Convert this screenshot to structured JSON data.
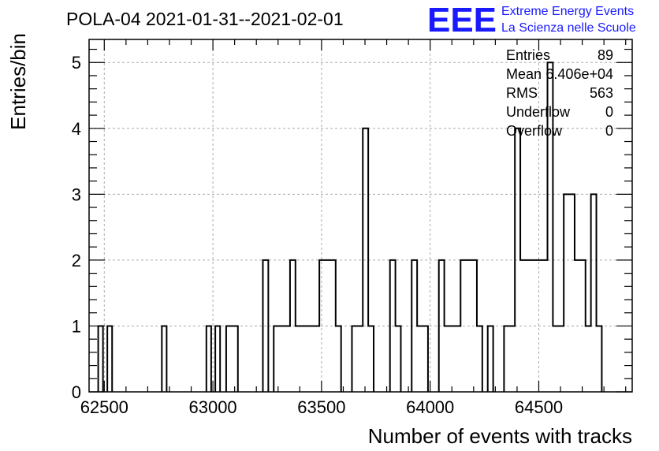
{
  "title": "POLA-04 2021-01-31--2021-02-01",
  "logo": {
    "mark": "EEE",
    "line1": "Extreme Energy Events",
    "line2": "La Scienza nelle Scuole",
    "color": "#1a1aff"
  },
  "stats": [
    {
      "label": "Entries",
      "value": "89"
    },
    {
      "label": "Mean",
      "value": "6.406e+04"
    },
    {
      "label": "RMS",
      "value": "563"
    },
    {
      "label": "Underflow",
      "value": "0"
    },
    {
      "label": "Overflow",
      "value": "0"
    }
  ],
  "chart_data": {
    "type": "bar",
    "style": "step-histogram",
    "xlabel": "Number of events with tracks",
    "ylabel": "Entries/bin",
    "xlim": [
      62430,
      64930
    ],
    "ylim": [
      0,
      5.35
    ],
    "grid": true,
    "x_ticks": [
      62500,
      63000,
      63500,
      64000,
      64500
    ],
    "y_ticks": [
      0,
      1,
      2,
      3,
      4,
      5
    ],
    "bins": [
      {
        "x0": 62472,
        "x1": 62494,
        "value": 1
      },
      {
        "x0": 62514,
        "x1": 62536,
        "value": 1
      },
      {
        "x0": 62765,
        "x1": 62787,
        "value": 1
      },
      {
        "x0": 62970,
        "x1": 62992,
        "value": 1
      },
      {
        "x0": 63011,
        "x1": 63033,
        "value": 1
      },
      {
        "x0": 63061,
        "x1": 63115,
        "value": 1
      },
      {
        "x0": 63230,
        "x1": 63255,
        "value": 2
      },
      {
        "x0": 63280,
        "x1": 63355,
        "value": 1
      },
      {
        "x0": 63355,
        "x1": 63380,
        "value": 2
      },
      {
        "x0": 63380,
        "x1": 63490,
        "value": 1
      },
      {
        "x0": 63490,
        "x1": 63565,
        "value": 2
      },
      {
        "x0": 63565,
        "x1": 63590,
        "value": 1
      },
      {
        "x0": 63640,
        "x1": 63690,
        "value": 1
      },
      {
        "x0": 63690,
        "x1": 63715,
        "value": 4
      },
      {
        "x0": 63715,
        "x1": 63740,
        "value": 1
      },
      {
        "x0": 63815,
        "x1": 63840,
        "value": 2
      },
      {
        "x0": 63840,
        "x1": 63865,
        "value": 1
      },
      {
        "x0": 63915,
        "x1": 63940,
        "value": 2
      },
      {
        "x0": 63940,
        "x1": 63990,
        "value": 1
      },
      {
        "x0": 64040,
        "x1": 64065,
        "value": 2
      },
      {
        "x0": 64065,
        "x1": 64140,
        "value": 1
      },
      {
        "x0": 64140,
        "x1": 64215,
        "value": 2
      },
      {
        "x0": 64215,
        "x1": 64240,
        "value": 1
      },
      {
        "x0": 64265,
        "x1": 64290,
        "value": 1
      },
      {
        "x0": 64340,
        "x1": 64390,
        "value": 1
      },
      {
        "x0": 64390,
        "x1": 64415,
        "value": 4
      },
      {
        "x0": 64415,
        "x1": 64540,
        "value": 2
      },
      {
        "x0": 64540,
        "x1": 64565,
        "value": 5
      },
      {
        "x0": 64565,
        "x1": 64615,
        "value": 1
      },
      {
        "x0": 64615,
        "x1": 64665,
        "value": 3
      },
      {
        "x0": 64665,
        "x1": 64715,
        "value": 2
      },
      {
        "x0": 64715,
        "x1": 64740,
        "value": 1
      },
      {
        "x0": 64740,
        "x1": 64765,
        "value": 3
      },
      {
        "x0": 64765,
        "x1": 64790,
        "value": 1
      }
    ]
  }
}
